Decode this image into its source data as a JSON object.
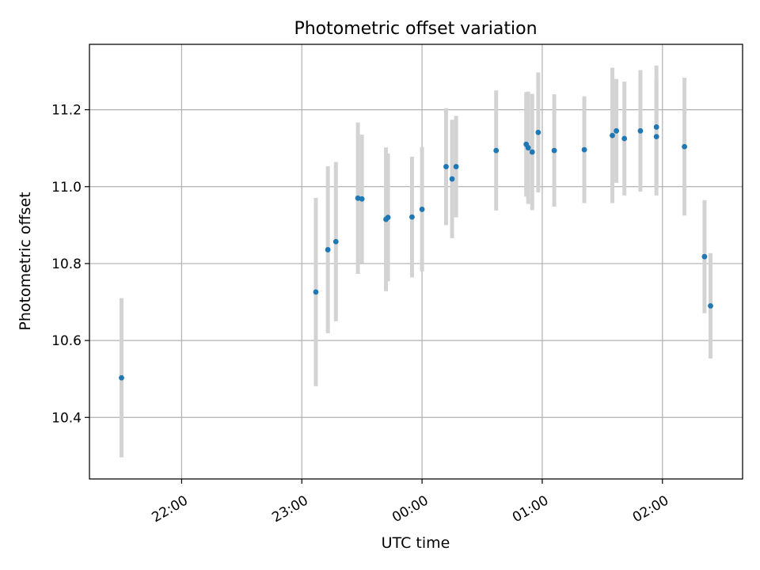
{
  "chart_data": {
    "type": "scatter",
    "title": "Photometric offset variation",
    "xlabel": "UTC time",
    "ylabel": "Photometric offset",
    "x_type": "time",
    "xlim": [
      "21:14",
      "02:40"
    ],
    "ylim": [
      10.24,
      11.37
    ],
    "x_ticks": [
      "22:00",
      "23:00",
      "00:00",
      "01:00",
      "02:00"
    ],
    "y_ticks": [
      10.4,
      10.6,
      10.8,
      11.0,
      11.2
    ],
    "y_tick_labels": [
      "10.4",
      "10.6",
      "10.8",
      "11.0",
      "11.2"
    ],
    "grid": true,
    "point_color": "#1f77b4",
    "errorbar_color": "#d3d3d3",
    "points": [
      {
        "t": "21:30",
        "y": 10.503,
        "err": 0.207
      },
      {
        "t": "23:07",
        "y": 10.726,
        "err": 0.245
      },
      {
        "t": "23:13",
        "y": 10.836,
        "err": 0.217
      },
      {
        "t": "23:17",
        "y": 10.857,
        "err": 0.207
      },
      {
        "t": "23:28",
        "y": 10.97,
        "err": 0.197
      },
      {
        "t": "23:30",
        "y": 10.968,
        "err": 0.167
      },
      {
        "t": "23:42",
        "y": 10.915,
        "err": 0.187
      },
      {
        "t": "23:43",
        "y": 10.92,
        "err": 0.166
      },
      {
        "t": "23:55",
        "y": 10.921,
        "err": 0.157
      },
      {
        "t": "00:00",
        "y": 10.941,
        "err": 0.162
      },
      {
        "t": "00:12",
        "y": 11.052,
        "err": 0.152
      },
      {
        "t": "00:15",
        "y": 11.02,
        "err": 0.154
      },
      {
        "t": "00:17",
        "y": 11.052,
        "err": 0.132
      },
      {
        "t": "00:37",
        "y": 11.094,
        "err": 0.156
      },
      {
        "t": "00:52",
        "y": 11.11,
        "err": 0.136
      },
      {
        "t": "00:53",
        "y": 11.101,
        "err": 0.146
      },
      {
        "t": "00:55",
        "y": 11.09,
        "err": 0.151
      },
      {
        "t": "00:58",
        "y": 11.141,
        "err": 0.156
      },
      {
        "t": "01:06",
        "y": 11.094,
        "err": 0.146
      },
      {
        "t": "01:21",
        "y": 11.096,
        "err": 0.139
      },
      {
        "t": "01:35",
        "y": 11.133,
        "err": 0.176
      },
      {
        "t": "01:37",
        "y": 11.145,
        "err": 0.135
      },
      {
        "t": "01:41",
        "y": 11.125,
        "err": 0.148
      },
      {
        "t": "01:49",
        "y": 11.145,
        "err": 0.158
      },
      {
        "t": "01:57",
        "y": 11.13,
        "err": 0.153
      },
      {
        "t": "01:57",
        "y": 11.155,
        "err": 0.16
      },
      {
        "t": "02:11",
        "y": 11.104,
        "err": 0.179
      },
      {
        "t": "02:21",
        "y": 10.818,
        "err": 0.147
      },
      {
        "t": "02:24",
        "y": 10.69,
        "err": 0.137
      }
    ]
  }
}
